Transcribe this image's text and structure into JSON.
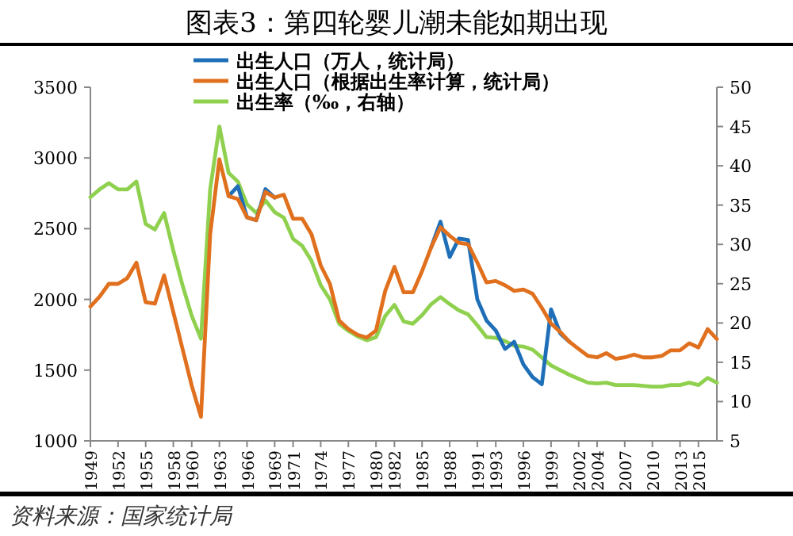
{
  "chart_data": {
    "type": "line",
    "title": "图表3：第四轮婴儿潮未能如期出现",
    "x": [
      1949,
      1950,
      1951,
      1952,
      1953,
      1954,
      1955,
      1956,
      1957,
      1958,
      1959,
      1960,
      1961,
      1962,
      1963,
      1964,
      1965,
      1966,
      1967,
      1968,
      1969,
      1970,
      1971,
      1972,
      1973,
      1974,
      1975,
      1976,
      1977,
      1978,
      1979,
      1980,
      1981,
      1982,
      1983,
      1984,
      1985,
      1986,
      1987,
      1988,
      1989,
      1990,
      1991,
      1992,
      1993,
      1994,
      1995,
      1996,
      1997,
      1998,
      1999,
      2000,
      2001,
      2002,
      2003,
      2004,
      2005,
      2006,
      2007,
      2008,
      2009,
      2010,
      2011,
      2012,
      2013,
      2014,
      2015,
      2016,
      2017
    ],
    "xlim": [
      1949,
      2017
    ],
    "xticks": [
      1949,
      1952,
      1955,
      1958,
      1960,
      1963,
      1966,
      1969,
      1971,
      1974,
      1977,
      1980,
      1982,
      1985,
      1988,
      1991,
      1993,
      1996,
      1999,
      2002,
      2004,
      2007,
      2010,
      2013,
      2015
    ],
    "ylim": [
      1000,
      3500
    ],
    "yticks": [
      1000,
      1500,
      2000,
      2500,
      3000,
      3500
    ],
    "y2lim": [
      5,
      50
    ],
    "y2ticks": [
      5,
      10,
      15,
      20,
      25,
      30,
      35,
      40,
      45,
      50
    ],
    "legend": "top",
    "grid": false,
    "marker": "none",
    "line_style": "solid",
    "series": [
      {
        "name": "出生人口（万人，统计局）",
        "color": "#1f6fb8",
        "values": [
          null,
          null,
          null,
          null,
          null,
          null,
          null,
          null,
          null,
          null,
          null,
          null,
          null,
          null,
          null,
          2730,
          2800,
          2580,
          2560,
          2780,
          2720,
          null,
          null,
          null,
          null,
          null,
          null,
          null,
          null,
          null,
          null,
          null,
          null,
          null,
          null,
          null,
          null,
          2370,
          2550,
          2300,
          2430,
          2420,
          2000,
          1850,
          1780,
          1650,
          1700,
          1540,
          1450,
          1400,
          1930,
          1760,
          1700,
          null,
          null,
          null,
          null,
          null,
          null,
          null,
          null,
          null,
          null,
          null,
          null,
          null,
          null,
          null,
          null
        ]
      },
      {
        "name": "出生人口（根据出生率计算，统计局）",
        "color": "#e0701e",
        "values": [
          1950,
          2020,
          2110,
          2110,
          2150,
          2260,
          1980,
          1970,
          2170,
          1910,
          1650,
          1390,
          1170,
          2460,
          2990,
          2730,
          2710,
          2580,
          2560,
          2760,
          2720,
          2740,
          2570,
          2570,
          2460,
          2240,
          2110,
          1850,
          1790,
          1750,
          1730,
          1780,
          2060,
          2230,
          2050,
          2050,
          2200,
          2370,
          2510,
          2450,
          2400,
          2390,
          2260,
          2120,
          2130,
          2100,
          2060,
          2070,
          2040,
          1940,
          1830,
          1770,
          1700,
          1650,
          1600,
          1590,
          1620,
          1580,
          1590,
          1610,
          1590,
          1590,
          1600,
          1640,
          1640,
          1690,
          1660,
          1790,
          1720
        ]
      },
      {
        "name": "出生率（‰，右轴）",
        "color": "#8fd14f",
        "axis": "y2",
        "values": [
          36,
          37,
          37.8,
          37,
          37,
          38,
          32.6,
          31.9,
          34,
          29.2,
          24.8,
          20.9,
          18,
          37,
          45,
          39.1,
          38,
          35.1,
          34,
          35.6,
          34.1,
          33.4,
          30.7,
          29.8,
          27.9,
          24.8,
          23,
          19.9,
          19,
          18.3,
          17.8,
          18.2,
          20.9,
          22.3,
          20.2,
          19.9,
          21,
          22.4,
          23.3,
          22.4,
          21.6,
          21.1,
          19.7,
          18.2,
          18.1,
          17.7,
          17.1,
          17,
          16.6,
          15.6,
          14.6,
          14,
          13.4,
          12.9,
          12.4,
          12.3,
          12.4,
          12.1,
          12.1,
          12.1,
          12,
          11.9,
          11.9,
          12.1,
          12.1,
          12.4,
          12.1,
          13,
          12.4
        ]
      }
    ],
    "annotations": [
      "资料来源：国家统计局"
    ]
  }
}
